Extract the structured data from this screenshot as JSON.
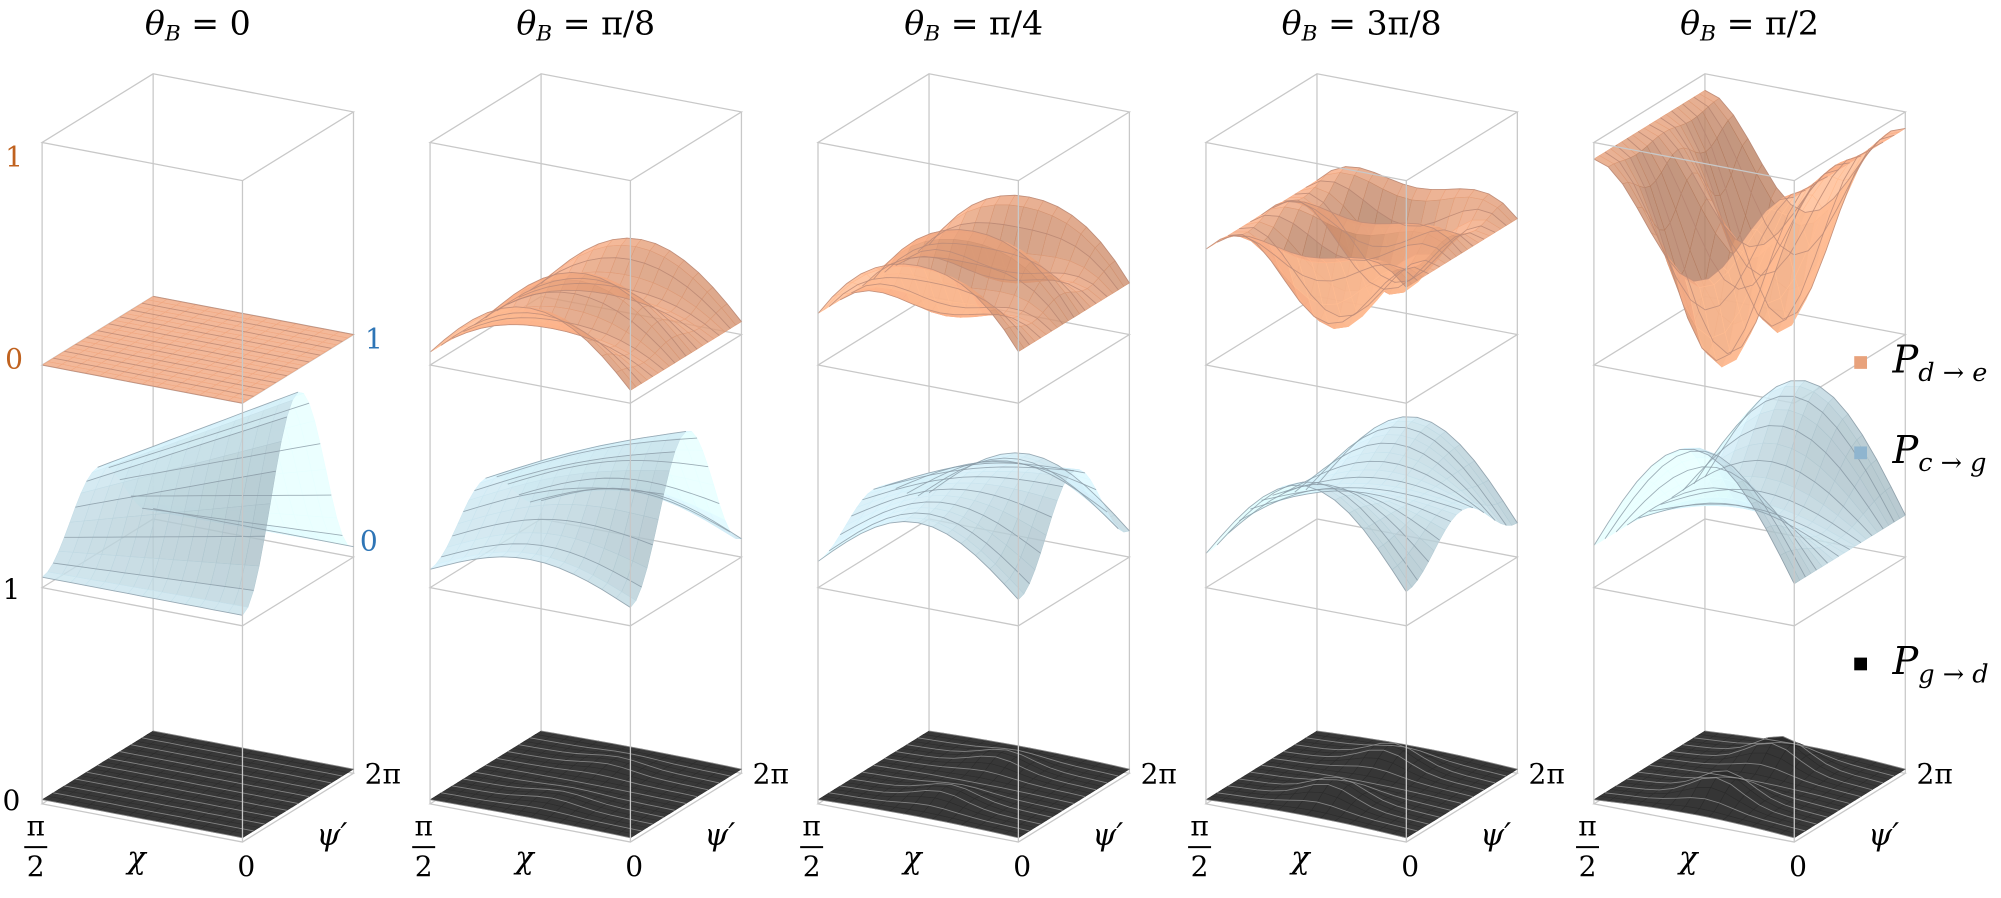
{
  "panels": [
    {
      "title": {
        "base": "θ",
        "sub": "B",
        "rest": " = 0"
      }
    },
    {
      "title": {
        "base": "θ",
        "sub": "B",
        "rest": " = π/8"
      }
    },
    {
      "title": {
        "base": "θ",
        "sub": "B",
        "rest": " = π/4"
      }
    },
    {
      "title": {
        "base": "θ",
        "sub": "B",
        "rest": " = 3π/8"
      }
    },
    {
      "title": {
        "base": "θ",
        "sub": "B",
        "rest": " = π/2"
      }
    }
  ],
  "axes": {
    "chi_max_num": "π",
    "chi_max_den": "2",
    "chi_label": "χ",
    "psi_min": "0",
    "psi_label": "ψ′",
    "psi_max": "2π"
  },
  "z_labels": {
    "orange": {
      "top": "1",
      "bottom": "0",
      "color": "#c0621f"
    },
    "blue": {
      "top": "1",
      "bottom": "0",
      "color": "#2e75b6"
    },
    "black": {
      "top": "1",
      "bottom": "0",
      "color": "#000000"
    }
  },
  "legend": [
    {
      "base": "P",
      "sub": "d → e",
      "color": "#e8a27c"
    },
    {
      "base": "P",
      "sub": "c → g",
      "color": "#8fb5cf"
    },
    {
      "base": "P",
      "sub": "g → d",
      "color": "#000000"
    }
  ]
}
